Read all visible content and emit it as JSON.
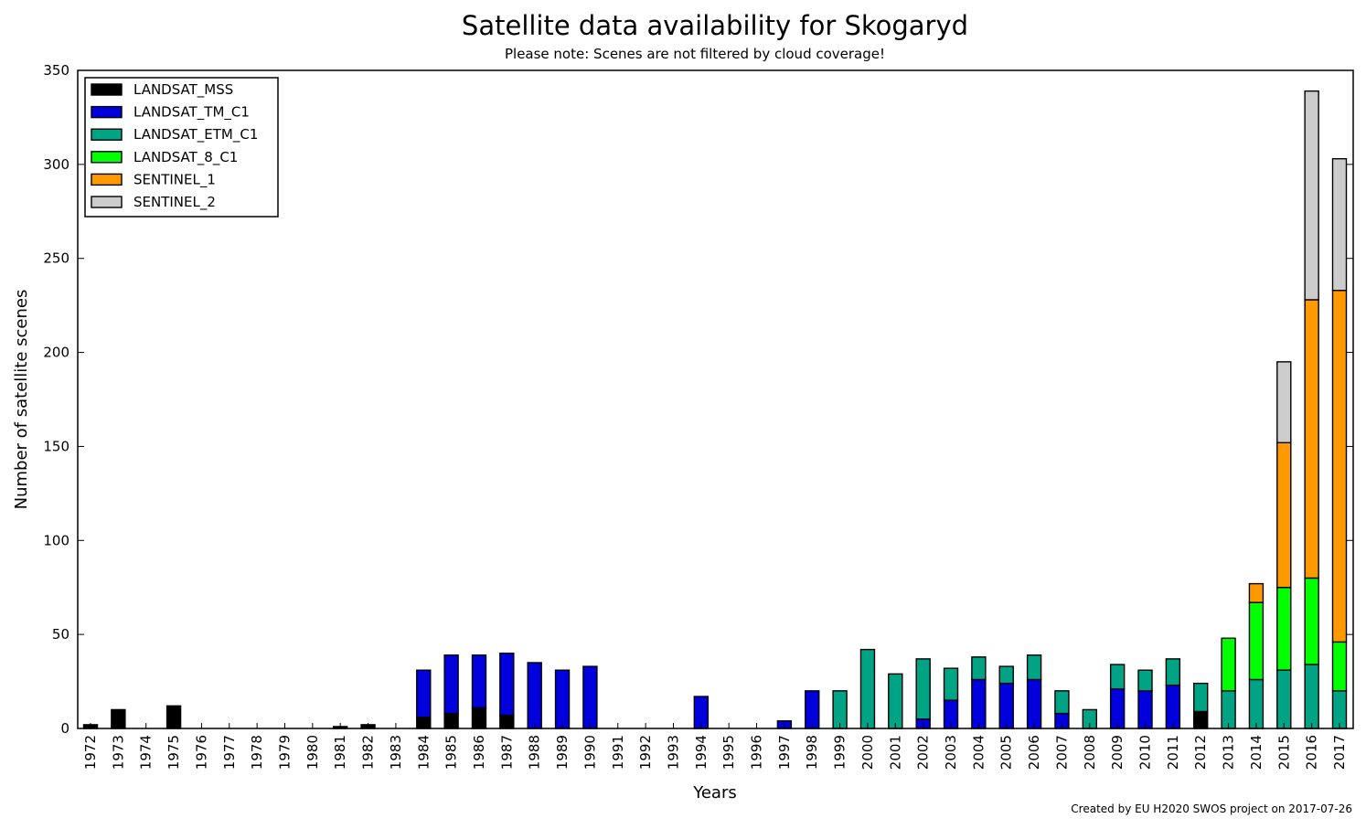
{
  "chart_data": {
    "type": "bar",
    "stacked": true,
    "title": "Satellite data availability for Skogaryd",
    "subtitle": "Please note: Scenes are not filtered by cloud coverage!",
    "xlabel": "Years",
    "ylabel": "Number of satellite scenes",
    "ylim": [
      0,
      350
    ],
    "yticks": [
      "0",
      "50",
      "100",
      "150",
      "200",
      "250",
      "300",
      "350"
    ],
    "grid": false,
    "legend_position": "top-left",
    "credit": "Created by EU H2020 SWOS project on 2017-07-26",
    "categories": [
      "1972",
      "1973",
      "1974",
      "1975",
      "1976",
      "1977",
      "1978",
      "1979",
      "1980",
      "1981",
      "1982",
      "1983",
      "1984",
      "1985",
      "1986",
      "1987",
      "1988",
      "1989",
      "1990",
      "1991",
      "1992",
      "1993",
      "1994",
      "1995",
      "1996",
      "1997",
      "1998",
      "1999",
      "2000",
      "2001",
      "2002",
      "2003",
      "2004",
      "2005",
      "2006",
      "2007",
      "2008",
      "2009",
      "2010",
      "2011",
      "2012",
      "2013",
      "2014",
      "2015",
      "2016",
      "2017"
    ],
    "series": [
      {
        "name": "LANDSAT_MSS",
        "color": "#000000",
        "values": [
          2,
          10,
          0,
          12,
          0,
          0,
          0,
          0,
          0,
          1,
          2,
          0,
          6,
          8,
          11,
          7,
          0,
          0,
          0,
          0,
          0,
          0,
          0,
          0,
          0,
          0,
          0,
          0,
          0,
          0,
          0,
          0,
          0,
          0,
          0,
          0,
          0,
          0,
          0,
          0,
          9,
          0,
          0,
          0,
          0,
          0
        ]
      },
      {
        "name": "LANDSAT_TM_C1",
        "color": "#0000dd",
        "values": [
          0,
          0,
          0,
          0,
          0,
          0,
          0,
          0,
          0,
          0,
          0,
          0,
          25,
          31,
          28,
          33,
          35,
          31,
          33,
          0,
          0,
          0,
          17,
          0,
          0,
          4,
          20,
          0,
          0,
          0,
          5,
          15,
          26,
          24,
          26,
          8,
          0,
          21,
          20,
          23,
          0,
          0,
          0,
          0,
          0,
          0
        ]
      },
      {
        "name": "LANDSAT_ETM_C1",
        "color": "#00a383",
        "values": [
          0,
          0,
          0,
          0,
          0,
          0,
          0,
          0,
          0,
          0,
          0,
          0,
          0,
          0,
          0,
          0,
          0,
          0,
          0,
          0,
          0,
          0,
          0,
          0,
          0,
          0,
          0,
          20,
          42,
          29,
          32,
          17,
          12,
          9,
          13,
          12,
          10,
          13,
          11,
          14,
          15,
          20,
          26,
          31,
          34,
          20
        ]
      },
      {
        "name": "LANDSAT_8_C1",
        "color": "#00ff00",
        "values": [
          0,
          0,
          0,
          0,
          0,
          0,
          0,
          0,
          0,
          0,
          0,
          0,
          0,
          0,
          0,
          0,
          0,
          0,
          0,
          0,
          0,
          0,
          0,
          0,
          0,
          0,
          0,
          0,
          0,
          0,
          0,
          0,
          0,
          0,
          0,
          0,
          0,
          0,
          0,
          0,
          0,
          28,
          41,
          44,
          46,
          26
        ]
      },
      {
        "name": "SENTINEL_1",
        "color": "#ff9900",
        "values": [
          0,
          0,
          0,
          0,
          0,
          0,
          0,
          0,
          0,
          0,
          0,
          0,
          0,
          0,
          0,
          0,
          0,
          0,
          0,
          0,
          0,
          0,
          0,
          0,
          0,
          0,
          0,
          0,
          0,
          0,
          0,
          0,
          0,
          0,
          0,
          0,
          0,
          0,
          0,
          0,
          0,
          0,
          10,
          77,
          148,
          187
        ]
      },
      {
        "name": "SENTINEL_2",
        "color": "#cccccc",
        "values": [
          0,
          0,
          0,
          0,
          0,
          0,
          0,
          0,
          0,
          0,
          0,
          0,
          0,
          0,
          0,
          0,
          0,
          0,
          0,
          0,
          0,
          0,
          0,
          0,
          0,
          0,
          0,
          0,
          0,
          0,
          0,
          0,
          0,
          0,
          0,
          0,
          0,
          0,
          0,
          0,
          0,
          0,
          0,
          43,
          111,
          70
        ]
      }
    ]
  }
}
